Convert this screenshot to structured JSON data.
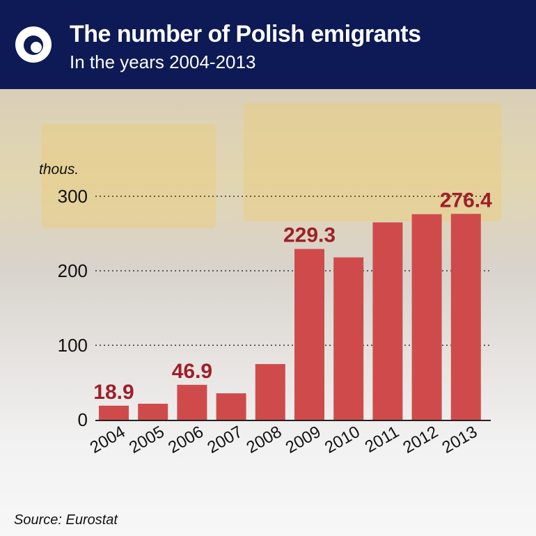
{
  "header": {
    "title": "The number of Polish emigrants",
    "subtitle": "In the years 2004-2013"
  },
  "source": "Source: Eurostat",
  "colors": {
    "header": "#0d1a55",
    "bar": "#cf4b4b",
    "label": "#9e1f2a"
  },
  "chart_data": {
    "type": "bar",
    "title": "The number of Polish emigrants",
    "subtitle": "In the years 2004-2013",
    "ylabel": "thous.",
    "xlabel": "",
    "categories": [
      "2004",
      "2005",
      "2006",
      "2007",
      "2008",
      "2009",
      "2010",
      "2011",
      "2012",
      "2013"
    ],
    "values": [
      18.9,
      21.5,
      46.9,
      35.5,
      74.8,
      229.3,
      218,
      265,
      276,
      276.4
    ],
    "data_labels": {
      "0": "18.9",
      "2": "46.9",
      "5": "229.3",
      "9": "276.4"
    },
    "yticks": [
      0,
      100,
      200,
      300
    ],
    "ylim": [
      0,
      300
    ],
    "grid": "dotted horizontal"
  }
}
